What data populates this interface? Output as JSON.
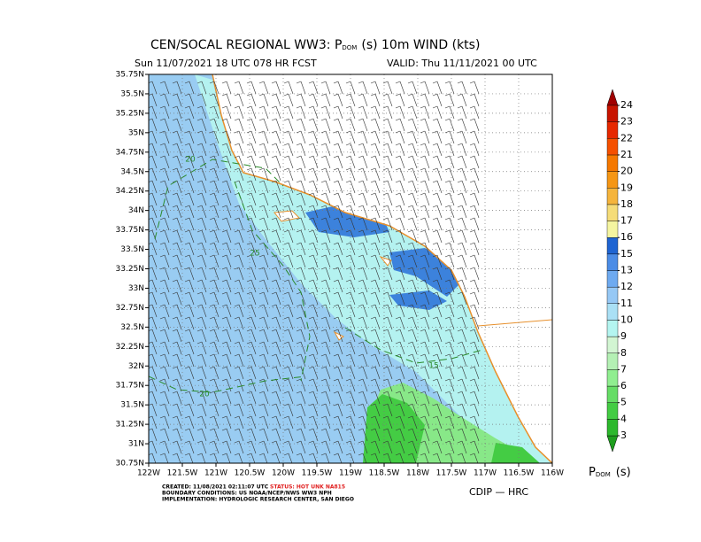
{
  "title": {
    "main": "CEN/SOCAL REGIONAL WW3: P",
    "sub": "DOM",
    "rest": "(s) 10m WIND (kts)"
  },
  "subtitle": {
    "forecast": "Sun 11/07/2021 18 UTC 078 HR FCST",
    "valid": "VALID: Thu 11/11/2021 00 UTC"
  },
  "map": {
    "xlim": [
      -122,
      -116
    ],
    "ylim": [
      30.75,
      35.75
    ],
    "xticks": [
      {
        "value": -122,
        "label": "122W"
      },
      {
        "value": -121.5,
        "label": "121.5W"
      },
      {
        "value": -121,
        "label": "121W"
      },
      {
        "value": -120.5,
        "label": "120.5W"
      },
      {
        "value": -120,
        "label": "120W"
      },
      {
        "value": -119.5,
        "label": "119.5W"
      },
      {
        "value": -119,
        "label": "119W"
      },
      {
        "value": -118.5,
        "label": "118.5W"
      },
      {
        "value": -118,
        "label": "118W"
      },
      {
        "value": -117.5,
        "label": "117.5W"
      },
      {
        "value": -117,
        "label": "117W"
      },
      {
        "value": -116.5,
        "label": "116.5W"
      },
      {
        "value": -116,
        "label": "116W"
      }
    ],
    "yticks": [
      {
        "value": 35.75,
        "label": "35.75N"
      },
      {
        "value": 35.5,
        "label": "35.5N"
      },
      {
        "value": 35.25,
        "label": "35.25N"
      },
      {
        "value": 35,
        "label": "35N"
      },
      {
        "value": 34.75,
        "label": "34.75N"
      },
      {
        "value": 34.5,
        "label": "34.5N"
      },
      {
        "value": 34.25,
        "label": "34.25N"
      },
      {
        "value": 34,
        "label": "34N"
      },
      {
        "value": 33.75,
        "label": "33.75N"
      },
      {
        "value": 33.5,
        "label": "33.5N"
      },
      {
        "value": 33.25,
        "label": "33.25N"
      },
      {
        "value": 33,
        "label": "33N"
      },
      {
        "value": 32.75,
        "label": "32.75N"
      },
      {
        "value": 32.5,
        "label": "32.5N"
      },
      {
        "value": 32.25,
        "label": "32.25N"
      },
      {
        "value": 32,
        "label": "32N"
      },
      {
        "value": 31.75,
        "label": "31.75N"
      },
      {
        "value": 31.5,
        "label": "31.5N"
      },
      {
        "value": 31.25,
        "label": "31.25N"
      },
      {
        "value": 31,
        "label": "31N"
      },
      {
        "value": 30.75,
        "label": "30.75N"
      }
    ],
    "grid": true,
    "contour_labels": [
      "20",
      "25",
      "15",
      "20"
    ]
  },
  "colorbar": {
    "levels": [
      3,
      4,
      5,
      6,
      7,
      8,
      9,
      10,
      11,
      12,
      13,
      15,
      16,
      17,
      18,
      19,
      20,
      21,
      22,
      23,
      24
    ],
    "colors": [
      "#1e9e1e",
      "#2db82d",
      "#44cc44",
      "#66dd66",
      "#90ee90",
      "#b4f0b4",
      "#d2f5d2",
      "#b4f5f0",
      "#aae0f5",
      "#96c8f5",
      "#6eaaf0",
      "#4b8ce6",
      "#1e64d2",
      "#f5f5a0",
      "#f5dc78",
      "#f5b43c",
      "#f59614",
      "#f57800",
      "#f55000",
      "#e62800",
      "#c81400",
      "#a00000"
    ],
    "label": {
      "main": "P",
      "sub": "DOM",
      "rest": "(s)"
    }
  },
  "footer": {
    "created": "CREATED: 11/08/2021 02:11:07 UTC",
    "status": "STATUS: HOT UNK NA815",
    "boundary": "BOUNDARY CONDITIONS: US NOAA/NCEP/NWS WW3 NPH",
    "implementation": "IMPLEMENTATION: HYDROLOGIC RESEARCH CENTER, SAN DIEGO",
    "credit": "CDIP — HRC"
  }
}
